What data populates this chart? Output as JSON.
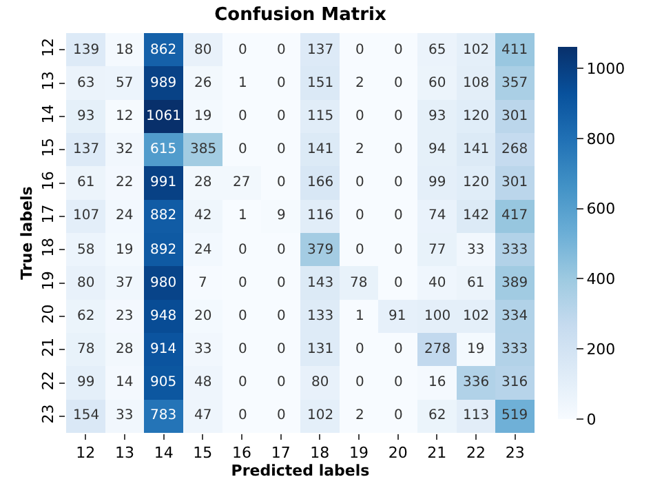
{
  "chart_data": {
    "type": "heatmap",
    "title": "Confusion Matrix",
    "xlabel": "Predicted labels",
    "ylabel": "True labels",
    "categories": [
      "12",
      "13",
      "14",
      "15",
      "16",
      "17",
      "18",
      "19",
      "20",
      "21",
      "22",
      "23"
    ],
    "y_categories": [
      "12",
      "13",
      "14",
      "15",
      "16",
      "17",
      "18",
      "19",
      "20",
      "21",
      "22",
      "23"
    ],
    "cells": [
      [
        139,
        18,
        862,
        80,
        0,
        0,
        137,
        0,
        0,
        65,
        102,
        411
      ],
      [
        63,
        57,
        989,
        26,
        1,
        0,
        151,
        2,
        0,
        60,
        108,
        357
      ],
      [
        93,
        12,
        1061,
        19,
        0,
        0,
        115,
        0,
        0,
        93,
        120,
        301
      ],
      [
        137,
        32,
        615,
        385,
        0,
        0,
        141,
        2,
        0,
        94,
        141,
        268
      ],
      [
        61,
        22,
        991,
        28,
        27,
        0,
        166,
        0,
        0,
        99,
        120,
        301
      ],
      [
        107,
        24,
        882,
        42,
        1,
        9,
        116,
        0,
        0,
        74,
        142,
        417
      ],
      [
        58,
        19,
        892,
        24,
        0,
        0,
        379,
        0,
        0,
        77,
        33,
        333
      ],
      [
        80,
        37,
        980,
        7,
        0,
        0,
        143,
        78,
        0,
        40,
        61,
        389
      ],
      [
        62,
        23,
        948,
        20,
        0,
        0,
        133,
        1,
        91,
        100,
        102,
        334
      ],
      [
        78,
        28,
        914,
        33,
        0,
        0,
        131,
        0,
        0,
        278,
        19,
        333
      ],
      [
        99,
        14,
        905,
        48,
        0,
        0,
        80,
        0,
        0,
        16,
        336,
        316
      ],
      [
        154,
        33,
        783,
        47,
        0,
        0,
        102,
        2,
        0,
        62,
        113,
        519
      ]
    ],
    "clim": [
      0,
      1061
    ],
    "cticks": [
      0,
      200,
      400,
      600,
      800,
      1000
    ],
    "data_labels": true
  }
}
